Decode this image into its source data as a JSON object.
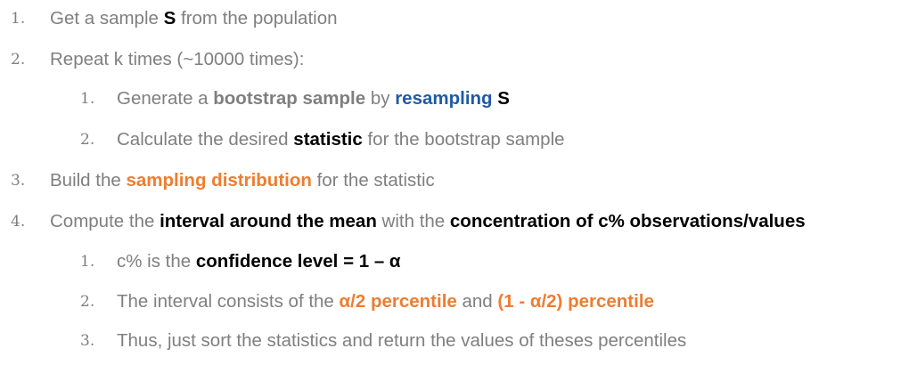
{
  "steps": [
    {
      "num": "1.",
      "level": 1,
      "segments": [
        {
          "text": "Get a sample ",
          "style": "plain"
        },
        {
          "text": "S",
          "style": "b-black"
        },
        {
          "text": " from the population",
          "style": "plain"
        }
      ]
    },
    {
      "num": "2.",
      "level": 1,
      "segments": [
        {
          "text": "Repeat k times (~10000 times):",
          "style": "plain"
        }
      ]
    },
    {
      "num": "1.",
      "level": 2,
      "segments": [
        {
          "text": "Generate a ",
          "style": "plain"
        },
        {
          "text": "bootstrap sample",
          "style": "b-gray"
        },
        {
          "text": " by ",
          "style": "plain"
        },
        {
          "text": "resampling",
          "style": "b-blue"
        },
        {
          "text": " S",
          "style": "b-black"
        }
      ]
    },
    {
      "num": "2.",
      "level": 2,
      "segments": [
        {
          "text": "Calculate the desired ",
          "style": "plain"
        },
        {
          "text": "statistic",
          "style": "b-black"
        },
        {
          "text": " for the bootstrap sample",
          "style": "plain"
        }
      ]
    },
    {
      "num": "3.",
      "level": 1,
      "segments": [
        {
          "text": "Build the ",
          "style": "plain"
        },
        {
          "text": "sampling distribution",
          "style": "b-orange"
        },
        {
          "text": " for the statistic",
          "style": "plain"
        }
      ]
    },
    {
      "num": "4.",
      "level": 1,
      "segments": [
        {
          "text": "Compute the ",
          "style": "plain"
        },
        {
          "text": "interval around the mean",
          "style": "b-black"
        },
        {
          "text": " with the ",
          "style": "plain"
        },
        {
          "text": "concentration of c% observations/values",
          "style": "b-black"
        }
      ]
    },
    {
      "num": "1.",
      "level": 2,
      "segments": [
        {
          "text": "c% is the ",
          "style": "plain"
        },
        {
          "text": "confidence level = 1 – α",
          "style": "b-black"
        }
      ]
    },
    {
      "num": "2.",
      "level": 2,
      "segments": [
        {
          "text": "The interval consists of the ",
          "style": "plain"
        },
        {
          "text": "α/2 percentile",
          "style": "b-orange"
        },
        {
          "text": " and ",
          "style": "plain"
        },
        {
          "text": "(1 - α/2) percentile",
          "style": "b-orange"
        }
      ]
    },
    {
      "num": "3.",
      "level": 2,
      "segments": [
        {
          "text": "Thus, just sort the statistics and return the values of theses percentiles",
          "style": "plain"
        }
      ]
    }
  ]
}
